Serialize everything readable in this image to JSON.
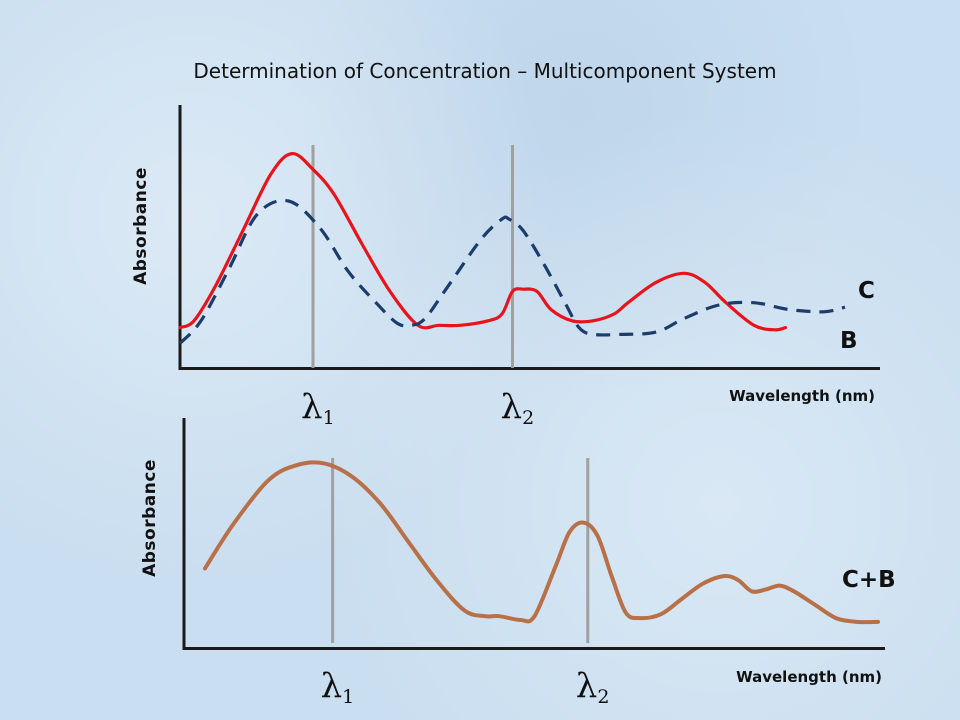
{
  "title": "Determination of Concentration – Multicomponent System",
  "lambda_symbol": "λ",
  "colors": {
    "C": "#e8141c",
    "B": "#1c3c6c",
    "C_plus_B": "#b87048",
    "marker": "#a0a0a0",
    "axis": "#1a1a1a"
  },
  "chart_data": [
    {
      "type": "line",
      "title": "",
      "ylabel": "Absorbance",
      "xlabel": "Wavelength (nm)",
      "x_units": "arbitrary wavelength scale (no ticks printed)",
      "xlim": [
        0,
        100
      ],
      "ylim": [
        0,
        100
      ],
      "grid": false,
      "wavelength_markers": [
        {
          "name": "λ1",
          "symbol": "λ",
          "subscript": "1",
          "x": 19
        },
        {
          "name": "λ2",
          "symbol": "λ",
          "subscript": "2",
          "x": 47.5
        }
      ],
      "series": [
        {
          "name": "C",
          "style": "solid",
          "color": "#e8141c",
          "points": [
            [
              0,
              17
            ],
            [
              2,
              20
            ],
            [
              5,
              35
            ],
            [
              9,
              60
            ],
            [
              13,
              85
            ],
            [
              16,
              94
            ],
            [
              19,
              87
            ],
            [
              22,
              76
            ],
            [
              26,
              54
            ],
            [
              30,
              33
            ],
            [
              34,
              18
            ],
            [
              37,
              18
            ],
            [
              40,
              18
            ],
            [
              44,
              20
            ],
            [
              46,
              23
            ],
            [
              47.5,
              33
            ],
            [
              49,
              34
            ],
            [
              51,
              33
            ],
            [
              53,
              25
            ],
            [
              56,
              20
            ],
            [
              59,
              20
            ],
            [
              62,
              23
            ],
            [
              64,
              28
            ],
            [
              68,
              37
            ],
            [
              72,
              41
            ],
            [
              75,
              37
            ],
            [
              78,
              28
            ],
            [
              82,
              18
            ],
            [
              85,
              16
            ],
            [
              86.5,
              17
            ]
          ]
        },
        {
          "name": "B",
          "style": "dashed",
          "color": "#1c3c6c",
          "points": [
            [
              0,
              10
            ],
            [
              3,
              20
            ],
            [
              7,
              43
            ],
            [
              11,
              67
            ],
            [
              15.5,
              73
            ],
            [
              20,
              61
            ],
            [
              24,
              42
            ],
            [
              28,
              28
            ],
            [
              31,
              19
            ],
            [
              33,
              18
            ],
            [
              35,
              21
            ],
            [
              38,
              34
            ],
            [
              43,
              56
            ],
            [
              46,
              65
            ],
            [
              47,
              65
            ],
            [
              49,
              60
            ],
            [
              52,
              45
            ],
            [
              55,
              28
            ],
            [
              57,
              17
            ],
            [
              59,
              14
            ],
            [
              63,
              14
            ],
            [
              68,
              15
            ],
            [
              72,
              21
            ],
            [
              77,
              27
            ],
            [
              82,
              28
            ],
            [
              87,
              25
            ],
            [
              92,
              24
            ],
            [
              95,
              26
            ]
          ]
        }
      ]
    },
    {
      "type": "line",
      "title": "",
      "ylabel": "Absorbance",
      "xlabel": "Wavelength (nm)",
      "x_units": "arbitrary wavelength scale (no ticks printed)",
      "xlim": [
        0,
        100
      ],
      "ylim": [
        0,
        100
      ],
      "grid": false,
      "wavelength_markers": [
        {
          "name": "λ1",
          "symbol": "λ",
          "subscript": "1",
          "x": 21.2
        },
        {
          "name": "λ2",
          "symbol": "λ",
          "subscript": "2",
          "x": 57.6
        }
      ],
      "series": [
        {
          "name": "C+B",
          "style": "solid",
          "color": "#b87048",
          "points": [
            [
              3,
              38
            ],
            [
              7,
              61
            ],
            [
              12,
              84
            ],
            [
              16,
              92
            ],
            [
              20,
              93
            ],
            [
              24,
              86
            ],
            [
              28,
              72
            ],
            [
              32,
              52
            ],
            [
              36,
              32
            ],
            [
              40,
              16
            ],
            [
              43,
              13
            ],
            [
              45,
              13
            ],
            [
              48,
              11
            ],
            [
              50,
              13
            ],
            [
              53,
              39
            ],
            [
              55,
              57
            ],
            [
              57,
              62
            ],
            [
              59,
              55
            ],
            [
              61,
              34
            ],
            [
              63,
              15
            ],
            [
              65,
              12
            ],
            [
              68,
              14
            ],
            [
              71,
              22
            ],
            [
              74,
              30
            ],
            [
              77,
              34
            ],
            [
              79,
              32
            ],
            [
              81,
              26
            ],
            [
              83,
              27
            ],
            [
              85,
              29
            ],
            [
              87,
              26
            ],
            [
              90,
              19
            ],
            [
              93,
              12
            ],
            [
              96,
              10
            ],
            [
              99,
              10
            ]
          ]
        }
      ]
    }
  ]
}
